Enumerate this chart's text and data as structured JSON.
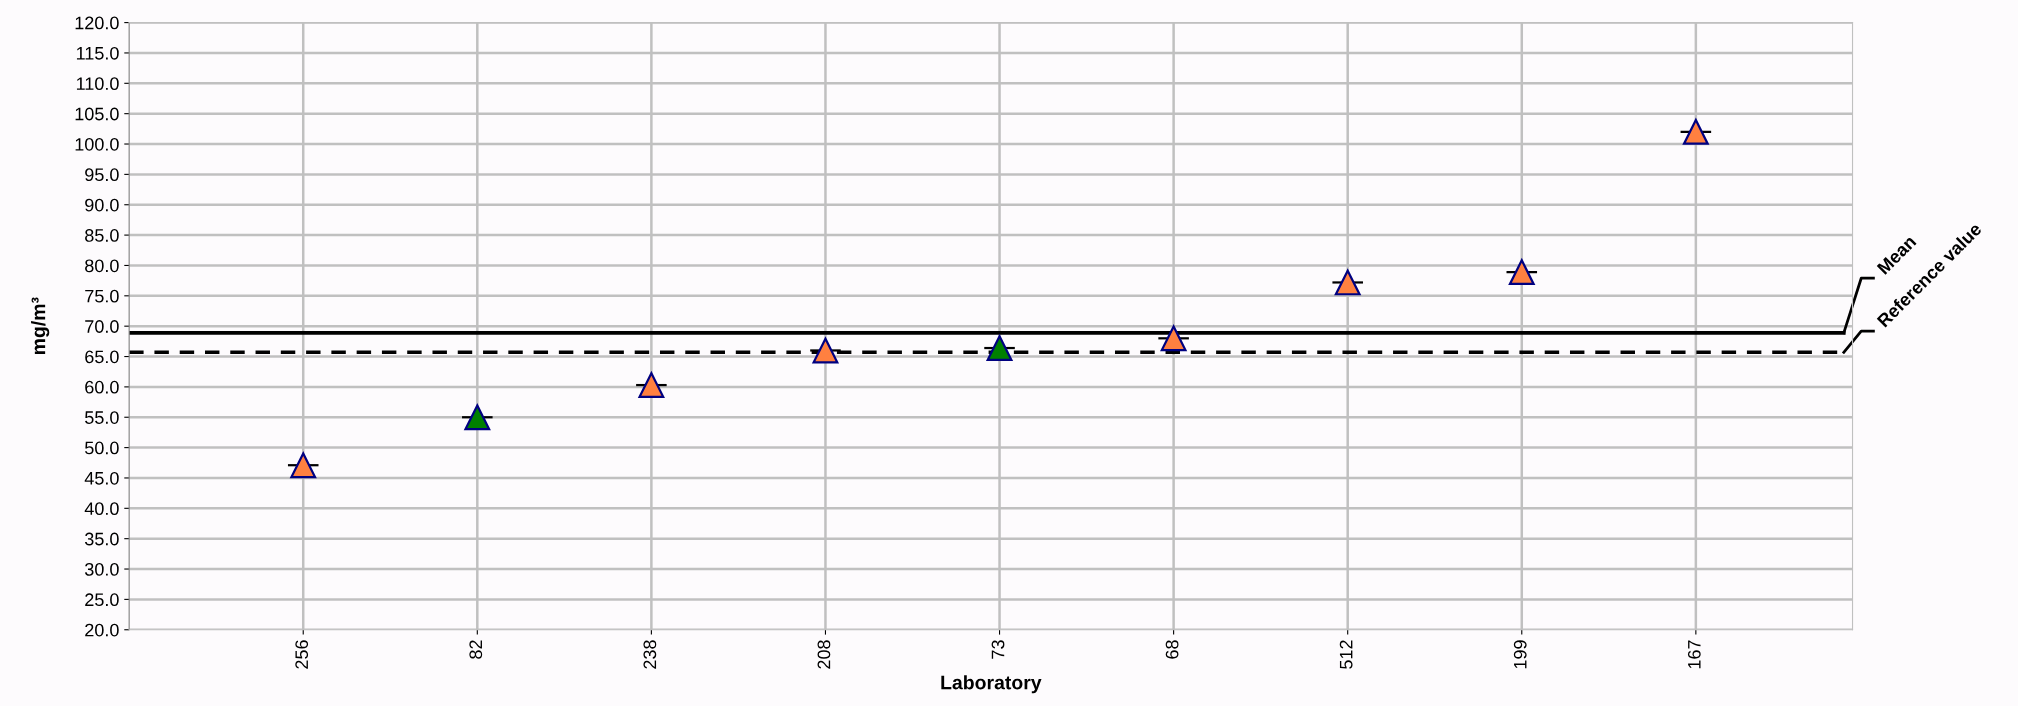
{
  "chart_data": {
    "type": "scatter",
    "xlabel": "Laboratory",
    "ylabel": "mg/m³",
    "categories": [
      "256",
      "82",
      "238",
      "208",
      "73",
      "68",
      "512",
      "199",
      "167"
    ],
    "series": [
      {
        "values": [
          47.1,
          55.0,
          60.3,
          66.0,
          66.4,
          68.0,
          77.2,
          78.9,
          102.0
        ],
        "colors": [
          "#ff8040",
          "#008000",
          "#ff8040",
          "#ff8040",
          "#008000",
          "#ff8040",
          "#ff8040",
          "#ff8040",
          "#ff8040"
        ]
      }
    ],
    "marker": "triangle",
    "grid": true,
    "ylim": [
      20,
      120
    ],
    "yticks": [
      {
        "value": 20,
        "label": "20.0"
      },
      {
        "value": 25,
        "label": "25.0"
      },
      {
        "value": 30,
        "label": "30.0"
      },
      {
        "value": 35,
        "label": "35.0"
      },
      {
        "value": 40,
        "label": "40.0"
      },
      {
        "value": 45,
        "label": "45.0"
      },
      {
        "value": 50,
        "label": "50.0"
      },
      {
        "value": 55,
        "label": "55.0"
      },
      {
        "value": 60,
        "label": "60.0"
      },
      {
        "value": 65,
        "label": "65.0"
      },
      {
        "value": 70,
        "label": "70.0"
      },
      {
        "value": 75,
        "label": "75.0"
      },
      {
        "value": 80,
        "label": "80.0"
      },
      {
        "value": 85,
        "label": "85.0"
      },
      {
        "value": 90,
        "label": "90.0"
      },
      {
        "value": 95,
        "label": "95.0"
      },
      {
        "value": 100,
        "label": "100.0"
      },
      {
        "value": 105,
        "label": "105.0"
      },
      {
        "value": 110,
        "label": "110.0"
      },
      {
        "value": 115,
        "label": "115.0"
      },
      {
        "value": 120,
        "label": "120.0"
      }
    ],
    "ref_lines": [
      {
        "axis": "y",
        "value": 68.9,
        "label": "Mean",
        "color": "#000000",
        "line_style": "solid"
      },
      {
        "axis": "y",
        "value": 65.7,
        "label": "Reference value",
        "color": "#000000",
        "line_style": "dashed"
      }
    ]
  }
}
